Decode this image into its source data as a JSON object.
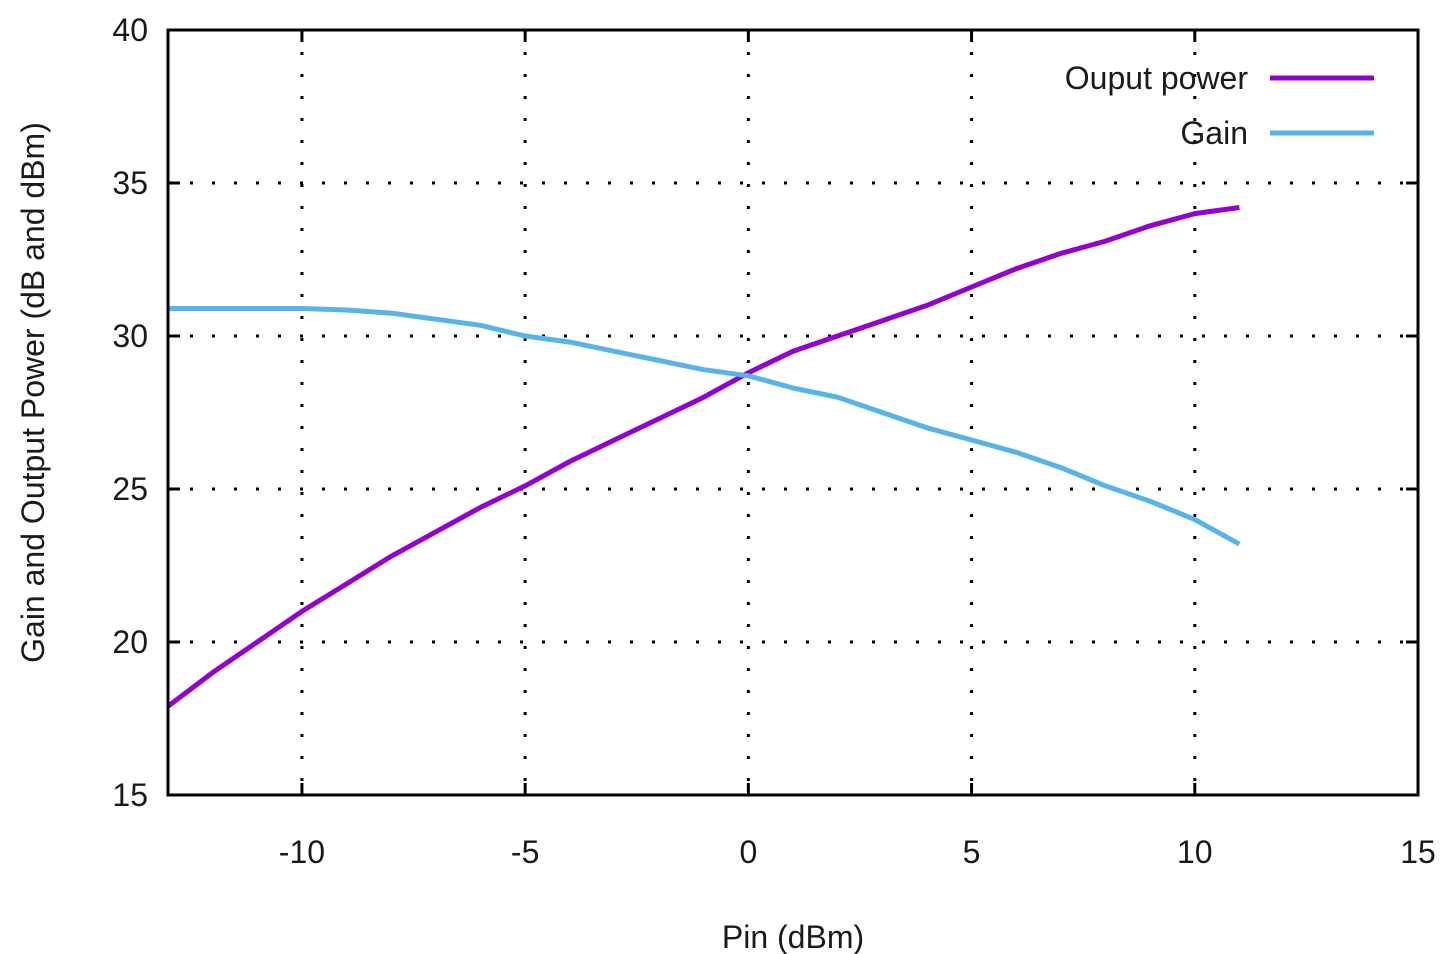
{
  "chart_data": {
    "type": "line",
    "title": "",
    "xlabel": "Pin (dBm)",
    "ylabel": "Gain and Output Power (dB and dBm)",
    "xlim": [
      -13,
      15
    ],
    "ylim": [
      15,
      40
    ],
    "xticks": [
      -10,
      -5,
      0,
      5,
      10,
      15
    ],
    "yticks": [
      15,
      20,
      25,
      30,
      35,
      40
    ],
    "grid": true,
    "grid_style": "dotted",
    "legend_position": "top-right",
    "series": [
      {
        "name": "Ouput power",
        "color": "#9400d3",
        "x": [
          -13,
          -12,
          -11,
          -10,
          -9,
          -8,
          -7,
          -6,
          -5,
          -4,
          -3,
          -2,
          -1,
          0,
          1,
          2,
          3,
          4,
          5,
          6,
          7,
          8,
          9,
          10,
          11
        ],
        "y": [
          17.9,
          19.0,
          20.0,
          21.0,
          21.9,
          22.8,
          23.6,
          24.4,
          25.1,
          25.9,
          26.6,
          27.3,
          28.0,
          28.8,
          29.5,
          30.0,
          30.5,
          31.0,
          31.6,
          32.2,
          32.7,
          33.1,
          33.6,
          34.0,
          34.2
        ]
      },
      {
        "name": "Gain",
        "color": "#56b4e9",
        "x": [
          -13,
          -12,
          -11,
          -10,
          -9,
          -8,
          -7,
          -6,
          -5,
          -4,
          -3,
          -2,
          -1,
          0,
          1,
          2,
          3,
          4,
          5,
          6,
          7,
          8,
          9,
          10,
          11
        ],
        "y": [
          30.9,
          30.9,
          30.9,
          30.9,
          30.85,
          30.75,
          30.55,
          30.35,
          30.0,
          29.8,
          29.5,
          29.2,
          28.9,
          28.7,
          28.3,
          28.0,
          27.5,
          27.0,
          26.6,
          26.2,
          25.7,
          25.1,
          24.6,
          24.0,
          23.2
        ]
      }
    ]
  }
}
